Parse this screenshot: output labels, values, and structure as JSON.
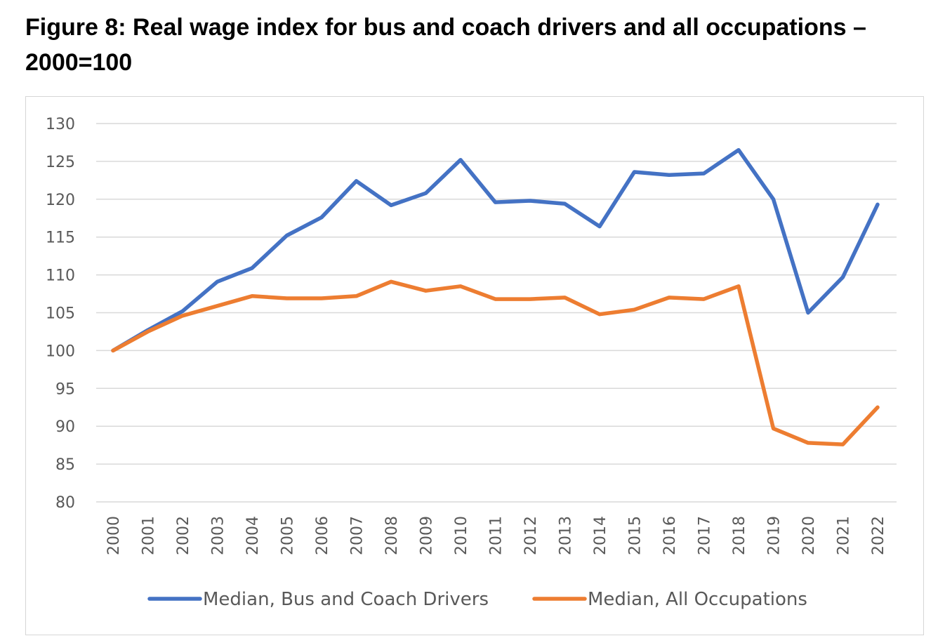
{
  "figure": {
    "title_line1": "Figure 8: Real wage index for bus and coach drivers and all occupations –",
    "title_line2": "2000=100"
  },
  "chart_data": {
    "type": "line",
    "title": "Figure 8: Real wage index for bus and coach drivers and all occupations – 2000=100",
    "xlabel": "",
    "ylabel": "",
    "x": [
      "2000",
      "2001",
      "2002",
      "2003",
      "2004",
      "2005",
      "2006",
      "2007",
      "2008",
      "2009",
      "2010",
      "2011",
      "2012",
      "2013",
      "2014",
      "2015",
      "2016",
      "2017",
      "2018",
      "2019",
      "2020",
      "2021",
      "2022"
    ],
    "ylim": [
      80,
      130
    ],
    "yticks": [
      130,
      125,
      120,
      115,
      110,
      105,
      100,
      95,
      90,
      85,
      80
    ],
    "grid": true,
    "legend_position": "bottom",
    "series": [
      {
        "name": "Median, Bus and Coach Drivers",
        "color": "#4472C4",
        "values": [
          100,
          102.7,
          105.2,
          109.1,
          110.9,
          115.2,
          117.6,
          122.4,
          119.2,
          120.8,
          125.2,
          119.6,
          119.8,
          119.4,
          116.4,
          123.6,
          123.2,
          123.4,
          126.5,
          120,
          105,
          109.7,
          119.3
        ]
      },
      {
        "name": "Median, All Occupations",
        "color": "#ED7D31",
        "values": [
          100,
          102.5,
          104.6,
          105.9,
          107.2,
          106.9,
          106.9,
          107.2,
          109.1,
          107.9,
          108.5,
          106.8,
          106.8,
          107,
          104.8,
          105.4,
          107,
          106.8,
          108.5,
          89.7,
          87.8,
          87.6,
          92.5
        ]
      }
    ]
  }
}
